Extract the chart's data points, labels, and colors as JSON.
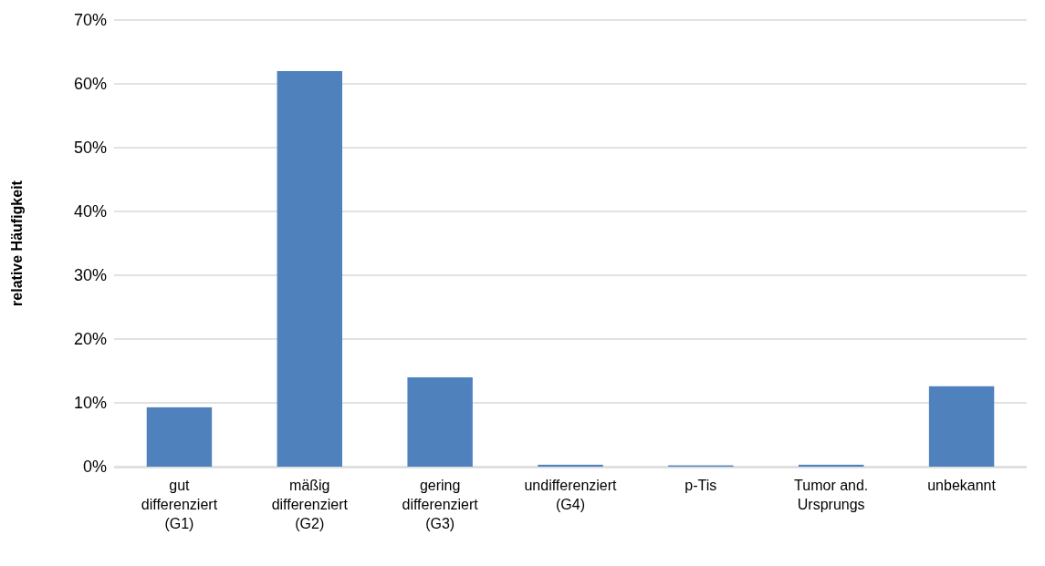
{
  "chart_data": {
    "type": "bar",
    "ylabel": "relative Häufigkeit",
    "categories": [
      "gut differenziert (G1)",
      "mäßig differenziert (G2)",
      "gering differenziert (G3)",
      "undifferenziert (G4)",
      "p-Tis",
      "Tumor and. Ursprungs",
      "unbekannt"
    ],
    "values": [
      9.3,
      62,
      14,
      0.3,
      0.2,
      0.3,
      12.6
    ],
    "color": "#4f81bd",
    "ylim": [
      0,
      70
    ],
    "yticks": [
      {
        "value": 0,
        "label": "0%"
      },
      {
        "value": 10,
        "label": "10%"
      },
      {
        "value": 20,
        "label": "20%"
      },
      {
        "value": 30,
        "label": "30%"
      },
      {
        "value": 40,
        "label": "40%"
      },
      {
        "value": 50,
        "label": "50%"
      },
      {
        "value": 60,
        "label": "60%"
      },
      {
        "value": 70,
        "label": "70%"
      }
    ],
    "grid": "y"
  }
}
